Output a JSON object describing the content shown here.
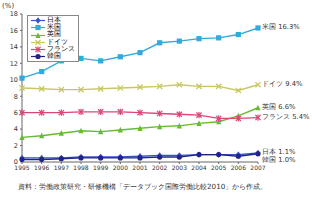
{
  "chart_data": {
    "type": "line",
    "y_label": "(%)",
    "source": "資料：労働政策研究・研修機構「データブック国際労働比較2010」から作成。",
    "categories": [
      "1995",
      "1996",
      "1997",
      "1998",
      "1999",
      "2000",
      "2001",
      "2002",
      "2003",
      "2004",
      "2005",
      "2006",
      "2007"
    ],
    "series": [
      {
        "name": "日本",
        "color": "#3355cc",
        "marker": "diamond",
        "values": [
          0.5,
          0.5,
          0.5,
          0.6,
          0.6,
          0.6,
          0.7,
          0.8,
          0.8,
          0.9,
          0.9,
          0.9,
          1.1
        ],
        "value_labels": [
          null,
          null,
          null,
          null,
          null,
          null,
          null,
          null,
          null,
          null,
          null,
          null,
          "1.1%"
        ]
      },
      {
        "name": "米国",
        "color": "#33aadd",
        "marker": "square",
        "values": [
          10.2,
          11.0,
          12.3,
          12.6,
          12.3,
          12.8,
          13.3,
          14.5,
          14.7,
          15.0,
          15.1,
          15.5,
          16.3
        ],
        "value_labels": [
          null,
          null,
          null,
          null,
          null,
          null,
          null,
          null,
          null,
          null,
          null,
          null,
          "16.3%"
        ]
      },
      {
        "name": "英国",
        "color": "#66bb33",
        "marker": "triangle",
        "values": [
          3.0,
          3.2,
          3.5,
          3.8,
          3.7,
          3.9,
          4.1,
          4.3,
          4.4,
          4.7,
          4.9,
          5.6,
          6.6
        ],
        "value_labels": [
          null,
          null,
          null,
          null,
          null,
          null,
          null,
          null,
          null,
          null,
          null,
          null,
          "6.6%"
        ]
      },
      {
        "name": "ドイツ",
        "color": "#c8c860",
        "marker": "cross",
        "values": [
          9.0,
          8.9,
          8.8,
          8.8,
          8.9,
          9.0,
          9.1,
          9.2,
          9.4,
          9.2,
          9.2,
          8.7,
          9.4
        ],
        "value_labels": [
          null,
          null,
          null,
          null,
          null,
          null,
          null,
          null,
          null,
          null,
          null,
          null,
          "9.4%"
        ]
      },
      {
        "name": "フランス",
        "color": "#dd4477",
        "marker": "star",
        "values": [
          6.0,
          6.0,
          6.0,
          6.1,
          6.1,
          6.1,
          6.0,
          5.9,
          5.8,
          5.7,
          5.3,
          5.3,
          5.4
        ],
        "value_labels": [
          null,
          null,
          null,
          null,
          null,
          null,
          null,
          null,
          null,
          null,
          null,
          null,
          "5.4%"
        ]
      },
      {
        "name": "韓国",
        "color": "#222288",
        "marker": "circle",
        "values": [
          0.3,
          0.3,
          0.4,
          0.5,
          0.5,
          0.5,
          0.5,
          0.6,
          0.6,
          0.9,
          0.9,
          0.7,
          1.0
        ],
        "value_labels": [
          null,
          null,
          null,
          null,
          null,
          null,
          null,
          null,
          null,
          null,
          null,
          null,
          "1.0%"
        ]
      }
    ],
    "ylim": [
      0,
      18
    ],
    "yticks": [
      0,
      2,
      4,
      6,
      8,
      10,
      12,
      14,
      16,
      18
    ],
    "grid": false,
    "legend": "upper left"
  }
}
